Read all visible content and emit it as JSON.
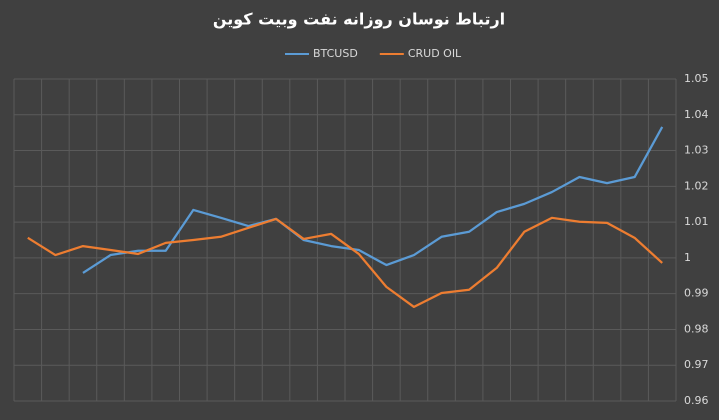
{
  "chart_data": {
    "type": "line",
    "title": "ارتباط نوسان روزانه نفت وبیت کوین",
    "categories": [
      null,
      null,
      null,
      null,
      null,
      null,
      null,
      null,
      null,
      null,
      null,
      null,
      null,
      null,
      null,
      null,
      null,
      null,
      null,
      null,
      null,
      null,
      null,
      null
    ],
    "series": [
      {
        "name": "BTCUSD",
        "color": "#5b9bd5",
        "values": [
          null,
          null,
          0.9958,
          1.0008,
          1.002,
          1.002,
          1.0134,
          1.0112,
          1.0089,
          1.0109,
          1.005,
          1.0033,
          1.0022,
          0.998,
          1.0008,
          1.0059,
          1.0073,
          1.0128,
          1.0151,
          1.0184,
          1.0226,
          1.0209,
          1.0226,
          1.0366
        ]
      },
      {
        "name": "CRUD OIL",
        "color": "#ed7d31",
        "values": [
          1.0056,
          1.0008,
          1.0033,
          1.0022,
          1.0011,
          1.0042,
          1.005,
          1.0059,
          1.0084,
          1.0109,
          1.0053,
          1.0067,
          1.0011,
          0.9919,
          0.9863,
          0.9902,
          0.9911,
          0.9972,
          1.0073,
          1.0112,
          1.0101,
          1.0098,
          1.0056,
          0.9986
        ]
      }
    ],
    "ylim": [
      0.96,
      1.05
    ],
    "yticks": [
      0.96,
      0.97,
      0.98,
      0.99,
      1,
      1.01,
      1.02,
      1.03,
      1.04,
      1.05
    ],
    "grid": true,
    "legend": "top"
  }
}
